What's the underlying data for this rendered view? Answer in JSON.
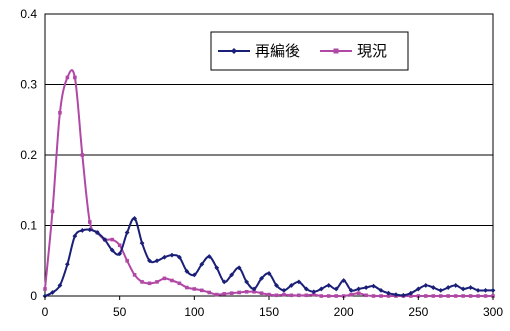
{
  "chart_data": {
    "type": "line",
    "xlabel": "",
    "ylabel": "",
    "xlim": [
      0,
      300
    ],
    "ylim": [
      0,
      0.4
    ],
    "x_ticks": [
      "0",
      "50",
      "100",
      "150",
      "200",
      "250",
      "300"
    ],
    "y_ticks": [
      "0",
      "0.1",
      "0.2",
      "0.3",
      "0.4"
    ],
    "grid": "horizontal",
    "legend_position": "top-right",
    "series": [
      {
        "name": "再編後",
        "color": "#1a1f78",
        "x": [
          0,
          5,
          10,
          15,
          20,
          25,
          30,
          35,
          40,
          45,
          50,
          55,
          60,
          65,
          70,
          75,
          80,
          85,
          90,
          95,
          100,
          105,
          110,
          115,
          120,
          125,
          130,
          135,
          140,
          145,
          150,
          155,
          160,
          165,
          170,
          175,
          180,
          185,
          190,
          195,
          200,
          205,
          210,
          215,
          220,
          225,
          230,
          235,
          240,
          245,
          250,
          255,
          260,
          265,
          270,
          275,
          280,
          285,
          290,
          295,
          300
        ],
        "values": [
          0.0,
          0.005,
          0.015,
          0.045,
          0.085,
          0.093,
          0.094,
          0.09,
          0.08,
          0.065,
          0.06,
          0.09,
          0.11,
          0.075,
          0.05,
          0.05,
          0.055,
          0.058,
          0.055,
          0.035,
          0.03,
          0.045,
          0.056,
          0.04,
          0.02,
          0.03,
          0.04,
          0.02,
          0.01,
          0.025,
          0.032,
          0.015,
          0.008,
          0.015,
          0.02,
          0.01,
          0.006,
          0.01,
          0.015,
          0.01,
          0.022,
          0.008,
          0.01,
          0.012,
          0.014,
          0.008,
          0.004,
          0.002,
          0.001,
          0.004,
          0.01,
          0.015,
          0.012,
          0.008,
          0.012,
          0.015,
          0.01,
          0.012,
          0.008,
          0.008,
          0.008
        ]
      },
      {
        "name": "現況",
        "color": "#b148a6",
        "x": [
          0,
          5,
          10,
          15,
          20,
          25,
          30,
          35,
          40,
          45,
          50,
          55,
          60,
          65,
          70,
          75,
          80,
          85,
          90,
          95,
          100,
          105,
          110,
          115,
          120,
          125,
          130,
          135,
          140,
          145,
          150,
          155,
          160,
          165,
          170,
          175,
          180,
          185,
          190,
          195,
          200,
          205,
          210,
          215,
          220,
          225,
          230,
          235,
          240,
          245,
          250,
          255,
          260,
          265,
          270,
          275,
          280,
          285,
          290,
          295,
          300
        ],
        "values": [
          0.01,
          0.12,
          0.26,
          0.31,
          0.31,
          0.2,
          0.105,
          0.09,
          0.08,
          0.08,
          0.072,
          0.05,
          0.03,
          0.02,
          0.018,
          0.02,
          0.025,
          0.022,
          0.018,
          0.012,
          0.01,
          0.008,
          0.005,
          0.002,
          0.003,
          0.004,
          0.005,
          0.006,
          0.006,
          0.004,
          0.002,
          0.001,
          0.002,
          0.001,
          0.001,
          0.001,
          0.002,
          0.0,
          0.0,
          0.0,
          0.0,
          0.002,
          0.004,
          0.001,
          0.0,
          0.0,
          0.0,
          0.0,
          0.0,
          0.0,
          0.0,
          0.0,
          0.0,
          0.0,
          0.0,
          0.0,
          0.0,
          0.0,
          0.0,
          0.0,
          0.0
        ]
      }
    ]
  }
}
